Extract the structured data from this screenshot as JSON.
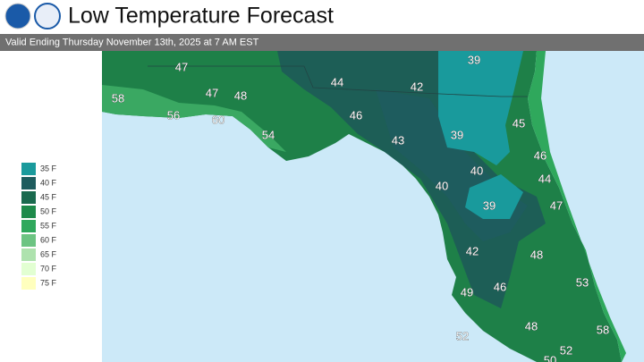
{
  "header": {
    "title": "Low Temperature Forecast",
    "subtitle": "Valid Ending Thursday November 13th, 2025 at 7 AM EST"
  },
  "legend": [
    {
      "label": "35 F",
      "color": "#1a9a9c"
    },
    {
      "label": "40 F",
      "color": "#1e5c5e"
    },
    {
      "label": "45 F",
      "color": "#1a6a4e"
    },
    {
      "label": "50 F",
      "color": "#1d8a4a"
    },
    {
      "label": "55 F",
      "color": "#2fa85c"
    },
    {
      "label": "60 F",
      "color": "#6cc482"
    },
    {
      "label": "65 F",
      "color": "#aee2ae"
    },
    {
      "label": "70 F",
      "color": "#e2ffd2"
    },
    {
      "label": "75 F",
      "color": "#ffffbe"
    }
  ],
  "map_labels": [
    47,
    44,
    42,
    39,
    58,
    47,
    48,
    56,
    60,
    46,
    54,
    43,
    39,
    45,
    40,
    46,
    40,
    44,
    39,
    47,
    42,
    48,
    49,
    46,
    53,
    48,
    52,
    58,
    52,
    50
  ]
}
